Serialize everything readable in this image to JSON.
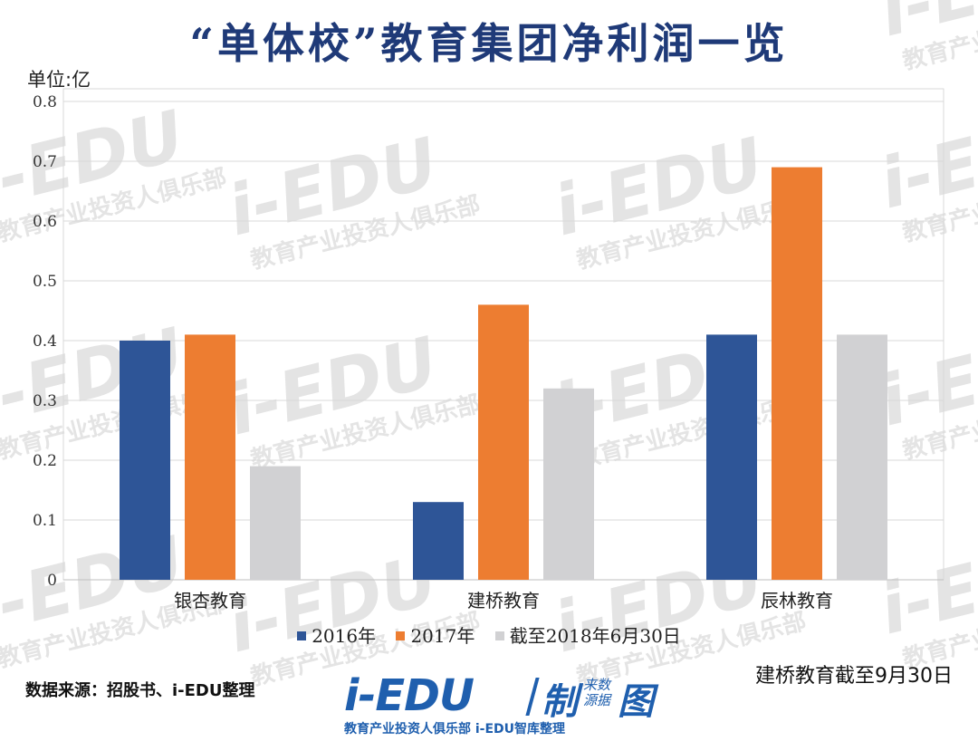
{
  "header": {
    "title": "“单体校”教育集团净利润一览",
    "unit_label": "单位:亿"
  },
  "chart_data": {
    "type": "bar",
    "categories": [
      "银杏教育",
      "建桥教育",
      "辰林教育"
    ],
    "series": [
      {
        "name": "2016年",
        "values": [
          0.4,
          0.13,
          0.41
        ],
        "color": "#2e5597"
      },
      {
        "name": "2017年",
        "values": [
          0.41,
          0.46,
          0.69
        ],
        "color": "#ed7d31"
      },
      {
        "name": "截至2018年6月30日",
        "values": [
          0.19,
          0.32,
          0.41
        ],
        "color": "#d1d1d3"
      }
    ],
    "ylim": [
      0,
      0.8
    ],
    "yticks": [
      "0",
      "0.1",
      "0.2",
      "0.3",
      "0.4",
      "0.5",
      "0.6",
      "0.7",
      "0.8"
    ],
    "grid": true,
    "legend_position": "bottom"
  },
  "footer": {
    "source": "数据来源：招股书、i-EDU整理",
    "note": "建桥教育截至9月30日",
    "logo": {
      "main": "i-EDU",
      "zhi": "制",
      "small_top": "来数",
      "small_bottom": "源据",
      "tu": "图",
      "sub": "教育产业投资人俱乐部  i-EDU智库整理"
    }
  },
  "watermark": {
    "main": "i-EDU",
    "sub": "教育产业投资人俱乐部"
  }
}
